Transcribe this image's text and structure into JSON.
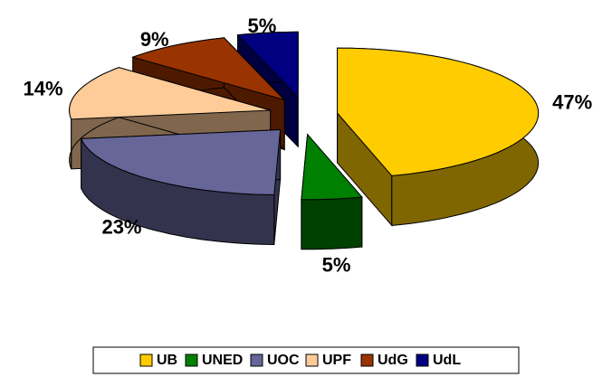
{
  "chart_data": {
    "type": "pie3d",
    "categories": [
      "UB",
      "UNED",
      "UOC",
      "UPF",
      "UdG",
      "UdL"
    ],
    "values": [
      47,
      5,
      23,
      14,
      9,
      5
    ],
    "value_labels": [
      "47%",
      "5%",
      "23%",
      "14%",
      "9%",
      "5%"
    ],
    "colors": [
      "#ffcc00",
      "#008000",
      "#666699",
      "#ffcc99",
      "#993300",
      "#000080"
    ],
    "legend": "bottom"
  }
}
